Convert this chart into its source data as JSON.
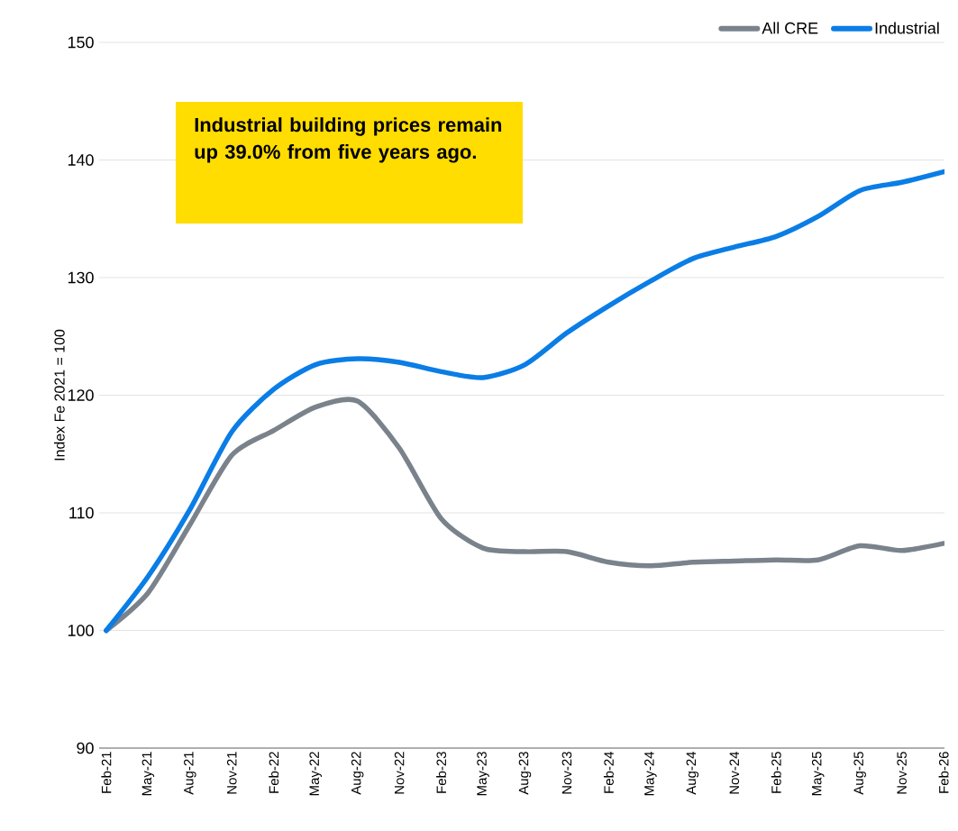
{
  "chart_data": {
    "type": "line",
    "ylabel": "Index Fe 2021 = 100",
    "annotations": [
      "Industrial building prices remain up 39.0% from five years ago."
    ],
    "categories": [
      "Feb-21",
      "May-21",
      "Aug-21",
      "Nov-21",
      "Feb-22",
      "May-22",
      "Aug-22",
      "Nov-22",
      "Feb-23",
      "May-23",
      "Aug-23",
      "Nov-23",
      "Feb-24",
      "May-24",
      "Aug-24",
      "Nov-24",
      "Feb-25",
      "May-25",
      "Aug-25",
      "Nov-25",
      "Feb-26"
    ],
    "series": [
      {
        "name": "All CRE",
        "color": "#7a828c",
        "values": [
          100,
          103.2,
          109,
          114.9,
          117,
          119,
          119.5,
          115.5,
          109.5,
          107,
          106.7,
          106.7,
          105.8,
          105.5,
          105.8,
          105.9,
          106,
          106,
          107.2,
          106.8,
          107.4
        ]
      },
      {
        "name": "Industrial",
        "color": "#0a7de6",
        "values": [
          100,
          104.6,
          110.3,
          116.9,
          120.5,
          122.6,
          123.1,
          122.8,
          122,
          121.5,
          122.6,
          125.3,
          127.6,
          129.7,
          131.6,
          132.6,
          133.5,
          135.2,
          137.4,
          138.1,
          139
        ]
      }
    ],
    "ylim": [
      90,
      150
    ],
    "yticks": [
      90,
      100,
      110,
      120,
      130,
      140,
      150
    ],
    "grid": "y",
    "legend": "top right"
  }
}
